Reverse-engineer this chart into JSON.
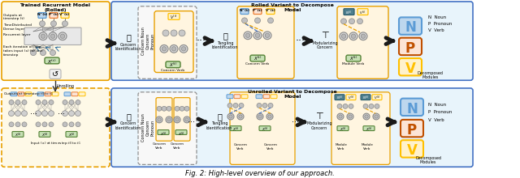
{
  "title": "Fig. 2: High-level overview of our approach.",
  "top_model_title": "Trained Recurrent Model\n(Rolled)",
  "rolled_title": "Rolled Variant to Decompose\nModel",
  "unrolled_title": "Unrolled Variant to Decompose\nModel",
  "bg_color": "#ffffff",
  "orange_fill": "#fef9e7",
  "blue_fill": "#e8f4fb",
  "orange_border": "#e8a000",
  "blue_border": "#4472c4",
  "gray_border": "#909090",
  "light_orange_fill": "#fff5e0",
  "neuron_color": "#c8c8c8",
  "neuron_ec": "#888888",
  "recurrent_fill": "#e8e8e8",
  "N_color": "#5b9bd5",
  "N_fill": "#bdd7ee",
  "P_color": "#ed7d31",
  "P_fill": "#fce4d6",
  "V_color": "#ffc000",
  "V_fill": "#fff2cc",
  "input_fill": "#c6e0b4",
  "input_ec": "#538135",
  "teal_fill": "#4e7f8e",
  "teal_ec": "#2e5f6e"
}
